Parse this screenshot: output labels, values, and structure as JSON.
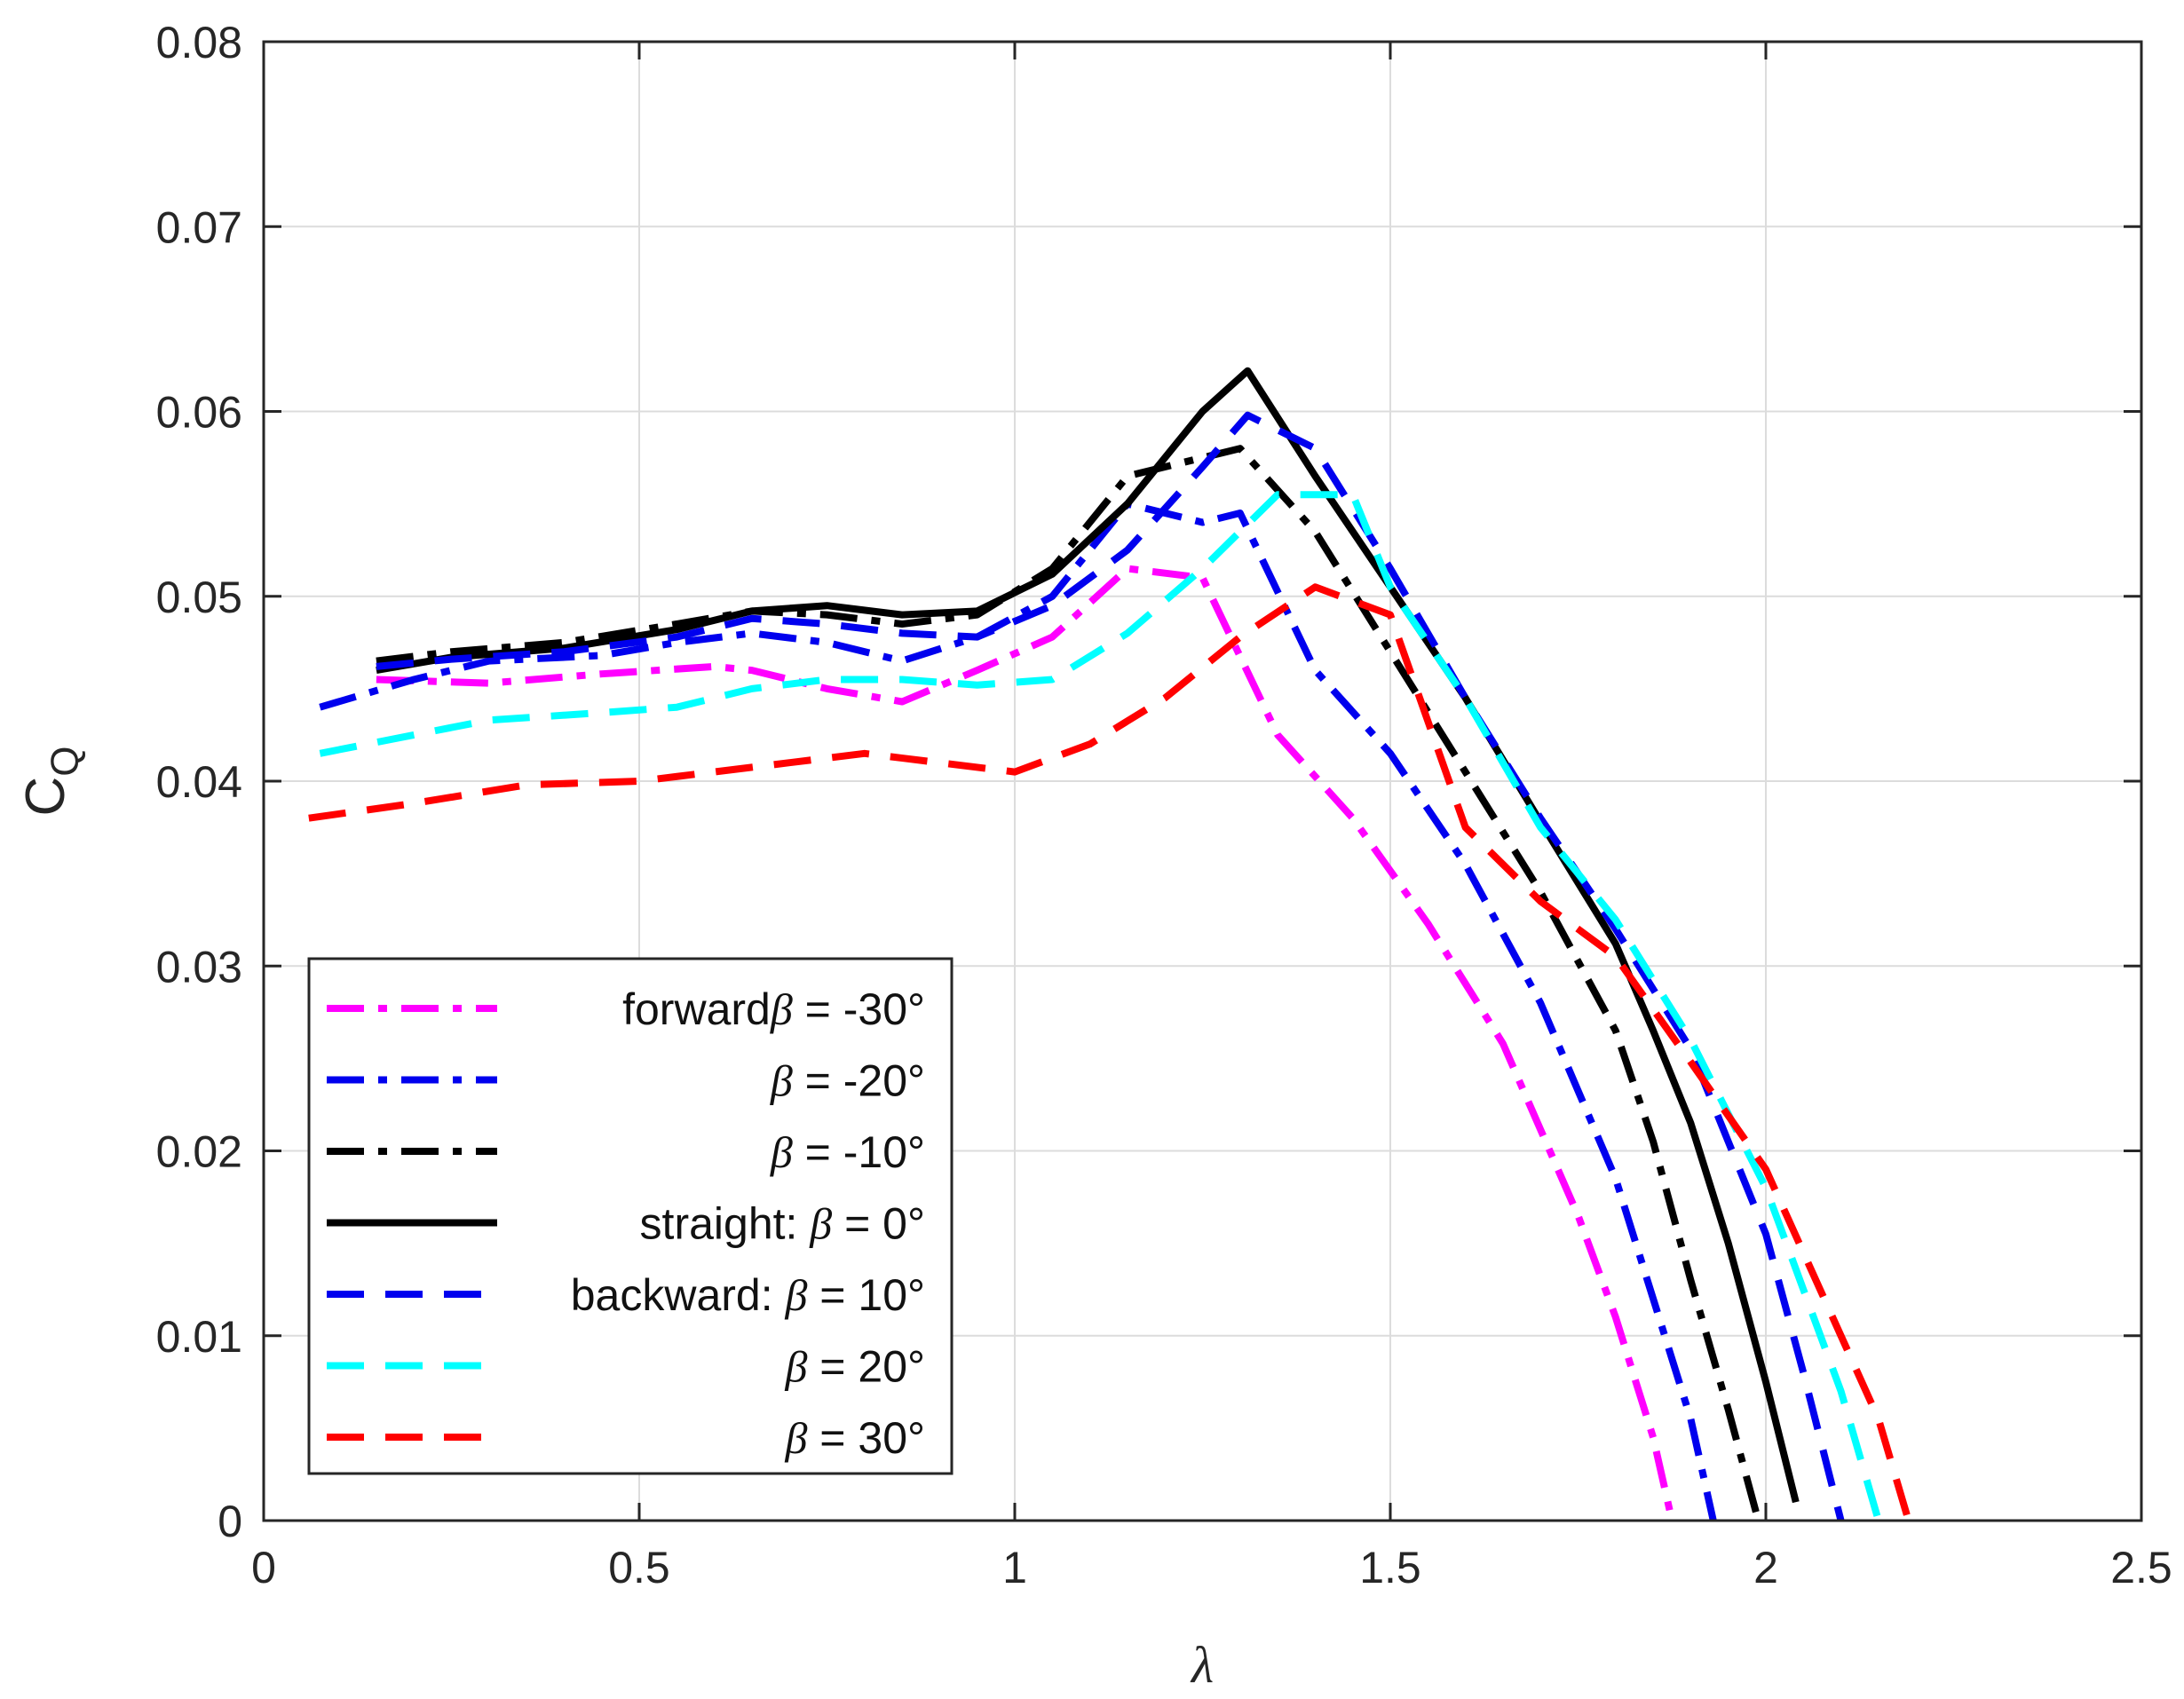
{
  "chart_data": {
    "type": "line",
    "xlabel": "λ",
    "ylabel": {
      "main": "C",
      "sub": "Q"
    },
    "xlim": [
      0,
      2.5
    ],
    "ylim": [
      0,
      0.08
    ],
    "xticks": [
      0,
      0.5,
      1,
      1.5,
      2,
      2.5
    ],
    "xtick_labels": [
      "0",
      "0.5",
      "1",
      "1.5",
      "2",
      "2.5"
    ],
    "yticks": [
      0,
      0.01,
      0.02,
      0.03,
      0.04,
      0.05,
      0.06,
      0.07,
      0.08
    ],
    "ytick_labels": [
      "0",
      "0.01",
      "0.02",
      "0.03",
      "0.04",
      "0.05",
      "0.06",
      "0.07",
      "0.08"
    ],
    "grid": true,
    "legend_position": "bottom-left",
    "series": [
      {
        "key": "m30",
        "prefix": "forward",
        "beta": "β",
        "suffix": " = -30°",
        "color": "#ff00ff",
        "dash": "dashdot",
        "x": [
          0.15,
          0.3,
          0.45,
          0.6,
          0.65,
          0.75,
          0.85,
          0.95,
          1.05,
          1.15,
          1.25,
          1.35,
          1.45,
          1.55,
          1.65,
          1.75,
          1.8,
          1.85,
          1.875
        ],
        "y": [
          0.0455,
          0.0453,
          0.0458,
          0.0462,
          0.046,
          0.045,
          0.0443,
          0.046,
          0.0478,
          0.0515,
          0.051,
          0.0425,
          0.038,
          0.0323,
          0.0258,
          0.0165,
          0.011,
          0.0045,
          0.0
        ]
      },
      {
        "key": "m20",
        "prefix": "",
        "beta": "β",
        "suffix": " = -20°",
        "color": "#0000ee",
        "dash": "dashdot",
        "x": [
          0.075,
          0.2,
          0.3,
          0.45,
          0.55,
          0.65,
          0.75,
          0.85,
          0.95,
          1.05,
          1.15,
          1.25,
          1.3,
          1.4,
          1.5,
          1.6,
          1.7,
          1.8,
          1.85,
          1.9,
          1.93
        ],
        "y": [
          0.044,
          0.0455,
          0.0465,
          0.0468,
          0.0475,
          0.048,
          0.0475,
          0.0465,
          0.0478,
          0.05,
          0.055,
          0.054,
          0.0545,
          0.046,
          0.0415,
          0.0355,
          0.028,
          0.0185,
          0.012,
          0.0055,
          0.0
        ]
      },
      {
        "key": "m10",
        "prefix": "",
        "beta": "β",
        "suffix": " = -10°",
        "color": "#000000",
        "dash": "dashdot",
        "x": [
          0.15,
          0.25,
          0.4,
          0.55,
          0.65,
          0.75,
          0.85,
          0.95,
          1.05,
          1.15,
          1.2,
          1.3,
          1.4,
          1.5,
          1.6,
          1.7,
          1.8,
          1.85,
          1.9,
          1.95,
          1.99
        ],
        "y": [
          0.0465,
          0.047,
          0.0475,
          0.0485,
          0.0492,
          0.049,
          0.0485,
          0.049,
          0.0515,
          0.0565,
          0.057,
          0.058,
          0.0535,
          0.047,
          0.0405,
          0.034,
          0.0265,
          0.0205,
          0.013,
          0.006,
          0.0
        ]
      },
      {
        "key": "p0",
        "prefix": "straight: ",
        "beta": "β",
        "suffix": " = 0°",
        "color": "#000000",
        "dash": "solid",
        "x": [
          0.15,
          0.25,
          0.4,
          0.55,
          0.65,
          0.75,
          0.85,
          0.95,
          1.05,
          1.15,
          1.25,
          1.31,
          1.4,
          1.5,
          1.6,
          1.7,
          1.8,
          1.85,
          1.9,
          1.95,
          2.0,
          2.04
        ],
        "y": [
          0.046,
          0.0467,
          0.0472,
          0.0482,
          0.0492,
          0.0495,
          0.049,
          0.0492,
          0.0512,
          0.055,
          0.06,
          0.0622,
          0.0565,
          0.0505,
          0.0445,
          0.0378,
          0.0312,
          0.0265,
          0.0215,
          0.015,
          0.0075,
          0.001
        ]
      },
      {
        "key": "p10",
        "prefix": "backward: ",
        "beta": "β",
        "suffix": " = 10°",
        "color": "#0000ee",
        "dash": "dashed",
        "x": [
          0.15,
          0.25,
          0.4,
          0.55,
          0.65,
          0.75,
          0.85,
          0.95,
          1.05,
          1.15,
          1.25,
          1.31,
          1.4,
          1.5,
          1.6,
          1.7,
          1.8,
          1.9,
          1.95,
          2.0,
          2.05,
          2.1
        ],
        "y": [
          0.0462,
          0.0466,
          0.047,
          0.0478,
          0.0488,
          0.0485,
          0.048,
          0.0478,
          0.0495,
          0.0525,
          0.057,
          0.0598,
          0.058,
          0.0515,
          0.0445,
          0.038,
          0.032,
          0.0255,
          0.0205,
          0.0155,
          0.008,
          0.0
        ]
      },
      {
        "key": "p20",
        "prefix": "",
        "beta": "β",
        "suffix": " = 20°",
        "color": "#00ffff",
        "dash": "dashed",
        "x": [
          0.075,
          0.2,
          0.3,
          0.45,
          0.55,
          0.65,
          0.75,
          0.85,
          0.95,
          1.05,
          1.15,
          1.25,
          1.35,
          1.45,
          1.5,
          1.6,
          1.7,
          1.8,
          1.9,
          1.95,
          2.0,
          2.05,
          2.1,
          2.15
        ],
        "y": [
          0.0415,
          0.0425,
          0.0433,
          0.0437,
          0.044,
          0.045,
          0.0455,
          0.0455,
          0.0452,
          0.0455,
          0.048,
          0.0515,
          0.0555,
          0.0555,
          0.0505,
          0.0445,
          0.0375,
          0.0325,
          0.026,
          0.022,
          0.018,
          0.0125,
          0.007,
          0.0
        ]
      },
      {
        "key": "p30",
        "prefix": "",
        "beta": "β",
        "suffix": " = 30°",
        "color": "#ff0000",
        "dash": "dashed",
        "x": [
          0.06,
          0.2,
          0.35,
          0.5,
          0.6,
          0.7,
          0.8,
          0.9,
          1.0,
          1.1,
          1.2,
          1.3,
          1.4,
          1.5,
          1.6,
          1.7,
          1.8,
          1.9,
          2.0,
          2.05,
          2.1,
          2.15,
          2.19
        ],
        "y": [
          0.038,
          0.0388,
          0.0398,
          0.04,
          0.0405,
          0.041,
          0.0415,
          0.041,
          0.0405,
          0.042,
          0.0445,
          0.0478,
          0.0505,
          0.049,
          0.0375,
          0.0335,
          0.0305,
          0.0248,
          0.019,
          0.0145,
          0.01,
          0.0055,
          0.0
        ]
      }
    ]
  }
}
